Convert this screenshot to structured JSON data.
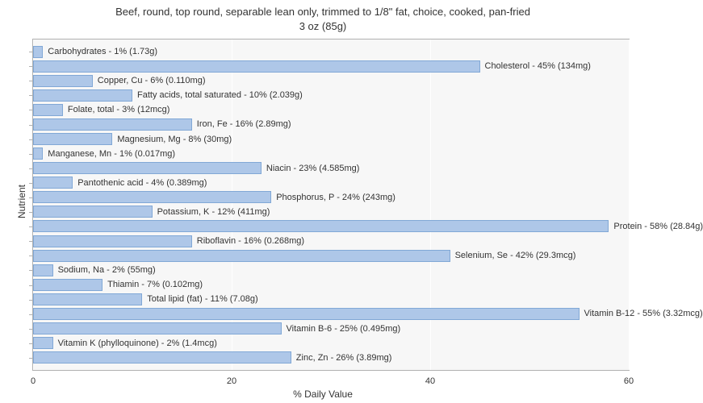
{
  "chart": {
    "type": "bar-horizontal",
    "title_line1": "Beef, round, top round, separable lean only, trimmed to 1/8\" fat, choice, cooked, pan-fried",
    "title_line2": "3 oz (85g)",
    "title_fontsize": 13,
    "xlabel": "% Daily Value",
    "ylabel": "Nutrient",
    "label_fontsize": 12,
    "xlim": [
      0,
      60
    ],
    "xticks": [
      0,
      20,
      40,
      60
    ],
    "background_color": "#f7f7f7",
    "grid_color": "#ffffff",
    "bar_color": "#aec7e8",
    "bar_border_color": "#81a8d6",
    "plot_border_color": "#b0b0b0",
    "text_color": "#333333",
    "tick_fontsize": 11,
    "bar_label_fontsize": 11,
    "bars": [
      {
        "label": "Carbohydrates - 1% (1.73g)",
        "value": 1
      },
      {
        "label": "Cholesterol - 45% (134mg)",
        "value": 45
      },
      {
        "label": "Copper, Cu - 6% (0.110mg)",
        "value": 6
      },
      {
        "label": "Fatty acids, total saturated - 10% (2.039g)",
        "value": 10
      },
      {
        "label": "Folate, total - 3% (12mcg)",
        "value": 3
      },
      {
        "label": "Iron, Fe - 16% (2.89mg)",
        "value": 16
      },
      {
        "label": "Magnesium, Mg - 8% (30mg)",
        "value": 8
      },
      {
        "label": "Manganese, Mn - 1% (0.017mg)",
        "value": 1
      },
      {
        "label": "Niacin - 23% (4.585mg)",
        "value": 23
      },
      {
        "label": "Pantothenic acid - 4% (0.389mg)",
        "value": 4
      },
      {
        "label": "Phosphorus, P - 24% (243mg)",
        "value": 24
      },
      {
        "label": "Potassium, K - 12% (411mg)",
        "value": 12
      },
      {
        "label": "Protein - 58% (28.84g)",
        "value": 58
      },
      {
        "label": "Riboflavin - 16% (0.268mg)",
        "value": 16
      },
      {
        "label": "Selenium, Se - 42% (29.3mcg)",
        "value": 42
      },
      {
        "label": "Sodium, Na - 2% (55mg)",
        "value": 2
      },
      {
        "label": "Thiamin - 7% (0.102mg)",
        "value": 7
      },
      {
        "label": "Total lipid (fat) - 11% (7.08g)",
        "value": 11
      },
      {
        "label": "Vitamin B-12 - 55% (3.32mcg)",
        "value": 55
      },
      {
        "label": "Vitamin B-6 - 25% (0.495mg)",
        "value": 25
      },
      {
        "label": "Vitamin K (phylloquinone) - 2% (1.4mcg)",
        "value": 2
      },
      {
        "label": "Zinc, Zn - 26% (3.89mg)",
        "value": 26
      }
    ]
  }
}
